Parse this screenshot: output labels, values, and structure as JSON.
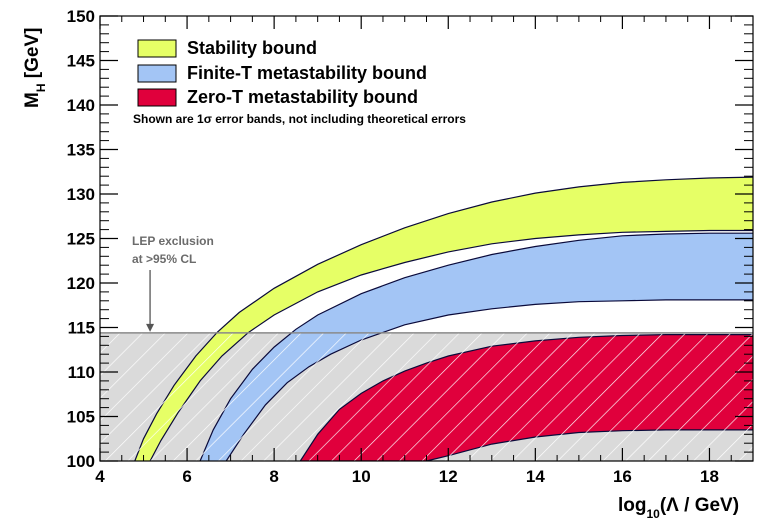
{
  "chart_data": {
    "type": "area",
    "xlabel_main": "log",
    "xlabel_sub": "10",
    "xlabel_rest": "(Λ / GeV)",
    "ylabel_main": "M",
    "ylabel_sub": "H",
    "ylabel_rest": " [GeV]",
    "xlim": [
      4,
      19
    ],
    "ylim": [
      100,
      150
    ],
    "x_ticks": [
      4,
      6,
      8,
      10,
      12,
      14,
      16,
      18
    ],
    "y_ticks": [
      100,
      105,
      110,
      115,
      120,
      125,
      130,
      135,
      140,
      145,
      150
    ],
    "grid": false,
    "legend_position": "top-left",
    "legend": [
      {
        "label": "Stability bound",
        "color": "#e6ff66"
      },
      {
        "label": "Finite-T metastability bound",
        "color": "#a3c5f5"
      },
      {
        "label": "Zero-T metastability bound",
        "color": "#e0003c"
      }
    ],
    "note": "Shown are 1σ error bands, not including theoretical errors",
    "lep_exclusion": {
      "label_line1": "LEP exclusion",
      "label_line2": "at >95% CL",
      "upper_limit": 114.4,
      "arrow_x": 5.15,
      "fill_color": "#dadada"
    },
    "series": [
      {
        "name": "Zero-T metastability bound",
        "color": "#e0003c",
        "upper": {
          "x": [
            8.6,
            9.0,
            9.5,
            10.0,
            10.5,
            11.0,
            11.5,
            12.0,
            13.0,
            14.0,
            15.0,
            16.0,
            17.0,
            18.0,
            19.0
          ],
          "y": [
            100.0,
            103.0,
            105.8,
            107.6,
            109.0,
            110.1,
            111.0,
            111.8,
            112.9,
            113.5,
            113.9,
            114.1,
            114.2,
            114.2,
            114.2
          ]
        },
        "lower": {
          "x": [
            8.6,
            9.0,
            9.5,
            10.0,
            10.5,
            11.0,
            11.5,
            12.0,
            13.0,
            14.0,
            15.0,
            16.0,
            17.0,
            18.0,
            19.0
          ],
          "y": [
            100.0,
            100.0,
            100.0,
            100.0,
            100.0,
            100.0,
            100.0,
            100.6,
            101.9,
            102.7,
            103.2,
            103.4,
            103.5,
            103.5,
            103.5
          ]
        }
      },
      {
        "name": "Finite-T metastability bound",
        "color": "#a3c5f5",
        "upper": {
          "x": [
            6.3,
            6.6,
            7.0,
            7.5,
            8.0,
            8.5,
            9.0,
            10.0,
            11.0,
            12.0,
            13.0,
            14.0,
            15.0,
            16.0,
            17.0,
            18.0,
            19.0
          ],
          "y": [
            100.0,
            103.5,
            107.0,
            110.3,
            112.8,
            114.8,
            116.4,
            118.8,
            120.6,
            122.0,
            123.2,
            124.1,
            124.8,
            125.3,
            125.5,
            125.6,
            125.6
          ]
        },
        "lower": {
          "x": [
            6.9,
            7.3,
            7.8,
            8.3,
            8.8,
            9.3,
            10.0,
            11.0,
            12.0,
            13.0,
            14.0,
            15.0,
            16.0,
            17.0,
            18.0,
            19.0
          ],
          "y": [
            100.0,
            103.0,
            106.3,
            108.8,
            110.6,
            112.0,
            113.6,
            115.3,
            116.4,
            117.1,
            117.6,
            117.9,
            118.0,
            118.1,
            118.1,
            118.1
          ]
        }
      },
      {
        "name": "Stability bound",
        "color": "#e6ff66",
        "upper": {
          "x": [
            4.8,
            5.0,
            5.3,
            5.7,
            6.2,
            6.7,
            7.2,
            8.0,
            9.0,
            10.0,
            11.0,
            12.0,
            13.0,
            14.0,
            15.0,
            16.0,
            17.0,
            18.0,
            19.0
          ],
          "y": [
            100.0,
            102.5,
            105.3,
            108.5,
            111.8,
            114.5,
            116.7,
            119.4,
            122.1,
            124.3,
            126.2,
            127.8,
            129.1,
            130.1,
            130.8,
            131.3,
            131.6,
            131.8,
            131.9
          ]
        },
        "lower": {
          "x": [
            5.15,
            5.4,
            5.8,
            6.3,
            6.8,
            7.4,
            8.0,
            9.0,
            10.0,
            11.0,
            12.0,
            13.0,
            14.0,
            15.0,
            16.0,
            17.0,
            18.0,
            19.0
          ],
          "y": [
            100.0,
            102.3,
            105.5,
            109.0,
            111.8,
            114.4,
            116.4,
            119.0,
            120.9,
            122.3,
            123.5,
            124.4,
            125.0,
            125.4,
            125.7,
            125.8,
            125.9,
            125.9
          ]
        }
      }
    ]
  }
}
